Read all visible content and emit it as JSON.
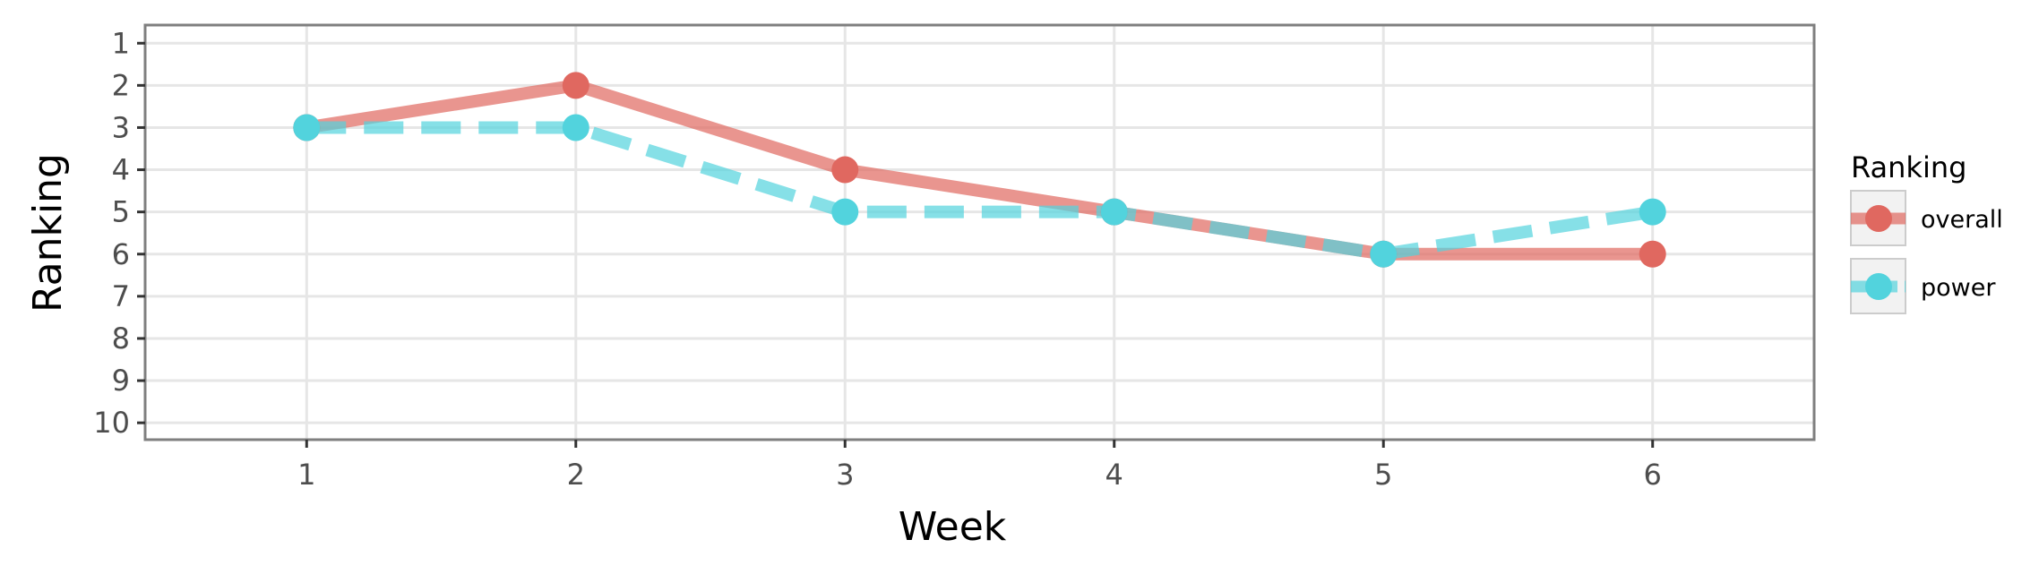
{
  "chart_data": {
    "type": "line",
    "xlabel": "Week",
    "ylabel": "Ranking",
    "x": [
      1,
      2,
      3,
      4,
      5,
      6
    ],
    "xlim": [
      0.4,
      6.6
    ],
    "ylim": [
      10.4,
      0.57
    ],
    "y_reversed": true,
    "x_ticks": [
      "1",
      "2",
      "3",
      "4",
      "5",
      "6"
    ],
    "y_ticks": [
      "1",
      "2",
      "3",
      "4",
      "5",
      "6",
      "7",
      "8",
      "9",
      "10"
    ],
    "grid": true,
    "legend": {
      "title": "Ranking",
      "placement": "right"
    },
    "series": [
      {
        "name": "overall",
        "values": [
          3,
          2,
          4,
          5,
          6,
          6
        ],
        "color": "#e06860",
        "line_style": "solid"
      },
      {
        "name": "power",
        "values": [
          3,
          3,
          5,
          5,
          6,
          5
        ],
        "color": "#52d3dd",
        "line_style": "dashed"
      }
    ]
  }
}
